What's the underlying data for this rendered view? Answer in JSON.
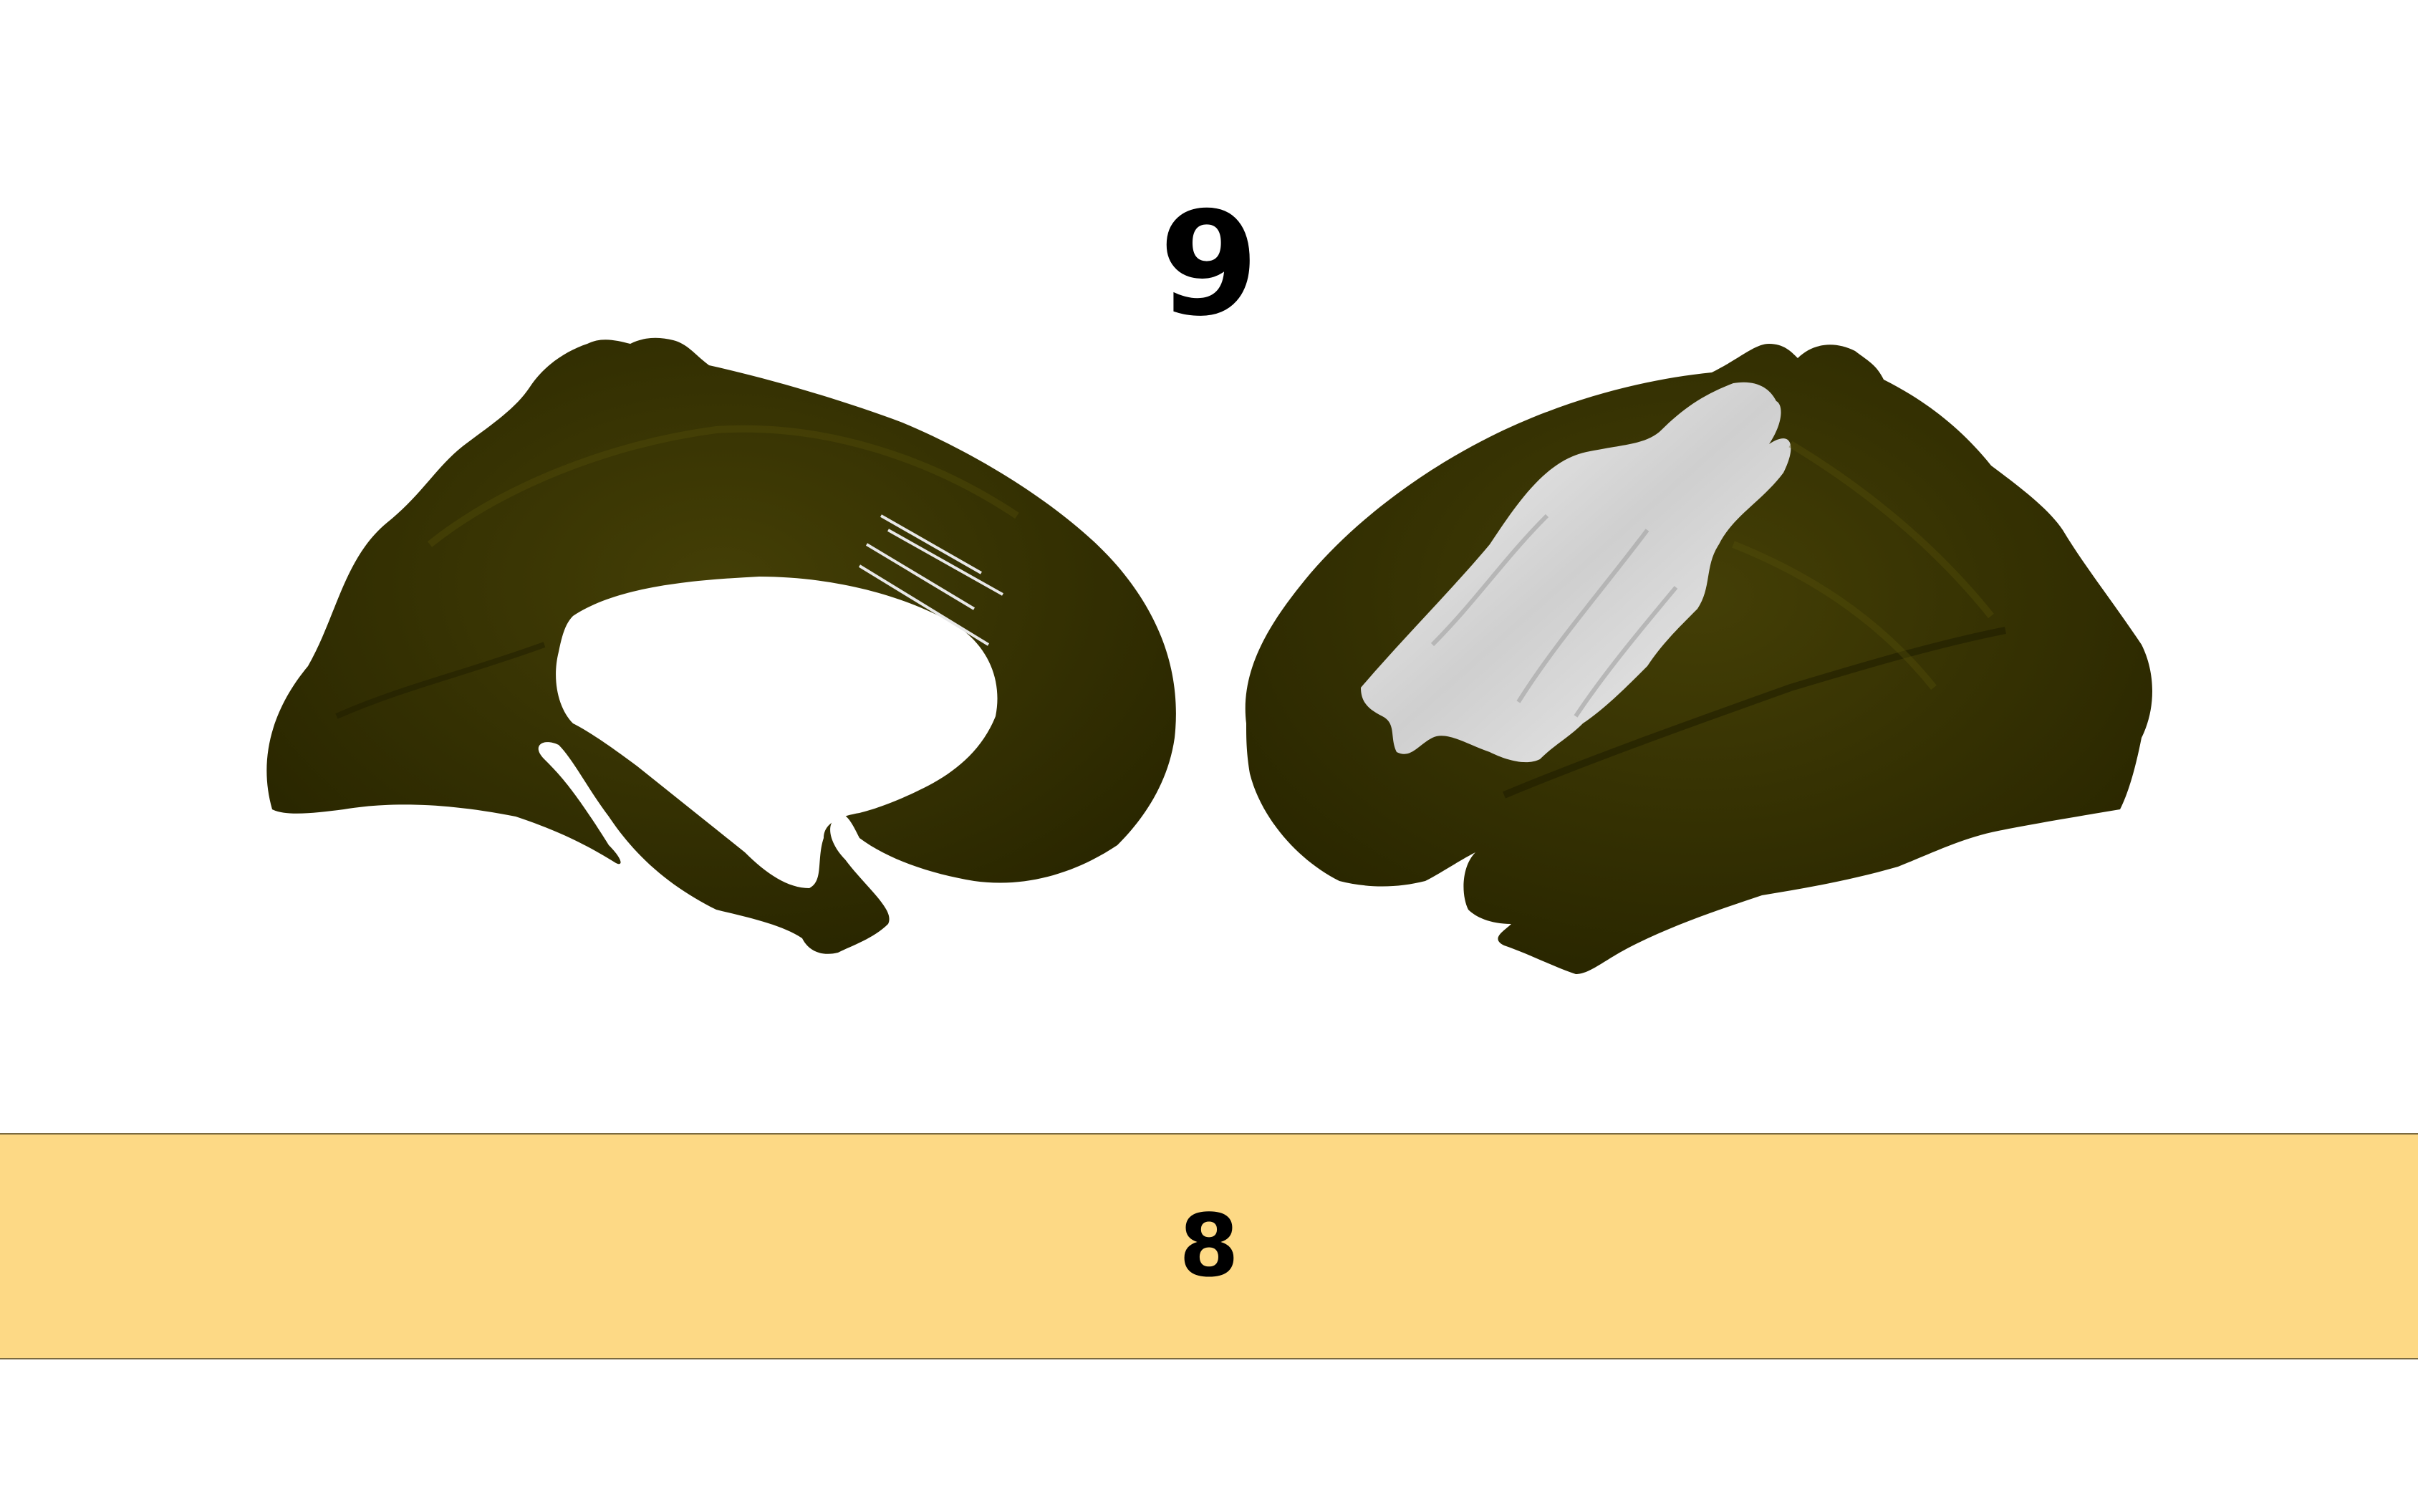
{
  "figure": {
    "title": "9",
    "banner_label": "8",
    "colors": {
      "background": "#ffffff",
      "cortex": "#2e2b00",
      "cortex_highlight": "#4a4508",
      "highlight_region": "#e6e6e6",
      "banner": "#fdd985"
    },
    "views": [
      {
        "name": "medial-view"
      },
      {
        "name": "lateral-view"
      }
    ]
  }
}
